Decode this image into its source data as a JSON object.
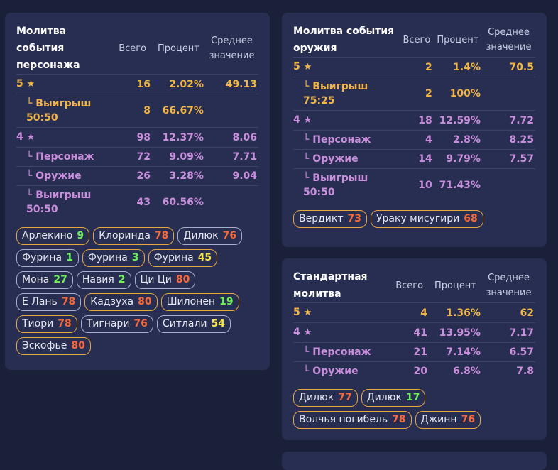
{
  "colors": {
    "background": "#1b2039",
    "card": "#282e51",
    "gold": "#f2b548",
    "purple": "#c98fdc",
    "red": "#f46a3c",
    "green": "#6ef05a",
    "yellow": "#f6e64a"
  },
  "columns": {
    "total": "Всего",
    "percent": "Процент",
    "average": "Среднее значение"
  },
  "star": "★",
  "character_banner": {
    "title": "Молитва события персонажа",
    "rows": [
      {
        "label": "5",
        "star": true,
        "total": "16",
        "percent": "2.02%",
        "average": "49.13",
        "color": "gold"
      },
      {
        "label": "└ Выигрыш 50:50",
        "sub": true,
        "total": "8",
        "percent": "66.67%",
        "average": "",
        "color": "gold"
      },
      {
        "label": "4",
        "star": true,
        "total": "98",
        "percent": "12.37%",
        "average": "8.06",
        "color": "purple"
      },
      {
        "label": "└ Персонаж",
        "sub": true,
        "total": "72",
        "percent": "9.09%",
        "average": "7.71",
        "color": "purple"
      },
      {
        "label": "└ Оружие",
        "sub": true,
        "total": "26",
        "percent": "3.28%",
        "average": "9.04",
        "color": "purple"
      },
      {
        "label": "└ Выигрыш 50:50",
        "sub": true,
        "total": "43",
        "percent": "60.56%",
        "average": "",
        "color": "purple"
      }
    ],
    "chips": [
      {
        "name": "Арлекино",
        "count": "9",
        "color": "green",
        "gold": true
      },
      {
        "name": "Клоринда",
        "count": "78",
        "color": "red",
        "gold": true
      },
      {
        "name": "Дилюк",
        "count": "76",
        "color": "red",
        "gold": false
      },
      {
        "name": "Фурина",
        "count": "1",
        "color": "green",
        "gold": false
      },
      {
        "name": "Фурина",
        "count": "3",
        "color": "green",
        "gold": true
      },
      {
        "name": "Фурина",
        "count": "45",
        "color": "yellow",
        "gold": true
      },
      {
        "name": "Мона",
        "count": "27",
        "color": "green",
        "gold": false
      },
      {
        "name": "Навия",
        "count": "2",
        "color": "green",
        "gold": false
      },
      {
        "name": "Ци Ци",
        "count": "80",
        "color": "red",
        "gold": false
      },
      {
        "name": "Е Лань",
        "count": "78",
        "color": "red",
        "gold": false
      },
      {
        "name": "Кадзуха",
        "count": "80",
        "color": "red",
        "gold": true
      },
      {
        "name": "Шилонен",
        "count": "19",
        "color": "green",
        "gold": true
      },
      {
        "name": "Тиори",
        "count": "78",
        "color": "red",
        "gold": true
      },
      {
        "name": "Тигнари",
        "count": "76",
        "color": "red",
        "gold": false
      },
      {
        "name": "Ситлали",
        "count": "54",
        "color": "yellow",
        "gold": false
      },
      {
        "name": "Эскофье",
        "count": "80",
        "color": "red",
        "gold": true
      }
    ]
  },
  "weapon_banner": {
    "title": "Молитва события оружия",
    "rows": [
      {
        "label": "5",
        "star": true,
        "total": "2",
        "percent": "1.4%",
        "average": "70.5",
        "color": "gold"
      },
      {
        "label": "└ Выигрыш 75:25",
        "sub": true,
        "total": "2",
        "percent": "100%",
        "average": "",
        "color": "gold"
      },
      {
        "label": "4",
        "star": true,
        "total": "18",
        "percent": "12.59%",
        "average": "7.72",
        "color": "purple"
      },
      {
        "label": "└ Персонаж",
        "sub": true,
        "total": "4",
        "percent": "2.8%",
        "average": "8.25",
        "color": "purple"
      },
      {
        "label": "└ Оружие",
        "sub": true,
        "total": "14",
        "percent": "9.79%",
        "average": "7.57",
        "color": "purple"
      },
      {
        "label": "└ Выигрыш 50:50",
        "sub": true,
        "total": "10",
        "percent": "71.43%",
        "average": "",
        "color": "purple"
      }
    ],
    "chips": [
      {
        "name": "Вердикт",
        "count": "73",
        "color": "red",
        "gold": true
      },
      {
        "name": "Ураку мисугири",
        "count": "68",
        "color": "red",
        "gold": true
      }
    ]
  },
  "standard_banner": {
    "title": "Стандартная молитва",
    "rows": [
      {
        "label": "5",
        "star": true,
        "total": "4",
        "percent": "1.36%",
        "average": "62",
        "color": "gold"
      },
      {
        "label": "4",
        "star": true,
        "total": "41",
        "percent": "13.95%",
        "average": "7.17",
        "color": "purple"
      },
      {
        "label": "└ Персонаж",
        "sub": true,
        "total": "21",
        "percent": "7.14%",
        "average": "6.57",
        "color": "purple"
      },
      {
        "label": "└ Оружие",
        "sub": true,
        "total": "20",
        "percent": "6.8%",
        "average": "7.8",
        "color": "purple"
      }
    ],
    "chips": [
      {
        "name": "Дилюк",
        "count": "77",
        "color": "red",
        "gold": true
      },
      {
        "name": "Дилюк",
        "count": "17",
        "color": "green",
        "gold": true
      },
      {
        "name": "Волчья погибель",
        "count": "78",
        "color": "red",
        "gold": true
      },
      {
        "name": "Джинн",
        "count": "76",
        "color": "red",
        "gold": true
      }
    ]
  }
}
